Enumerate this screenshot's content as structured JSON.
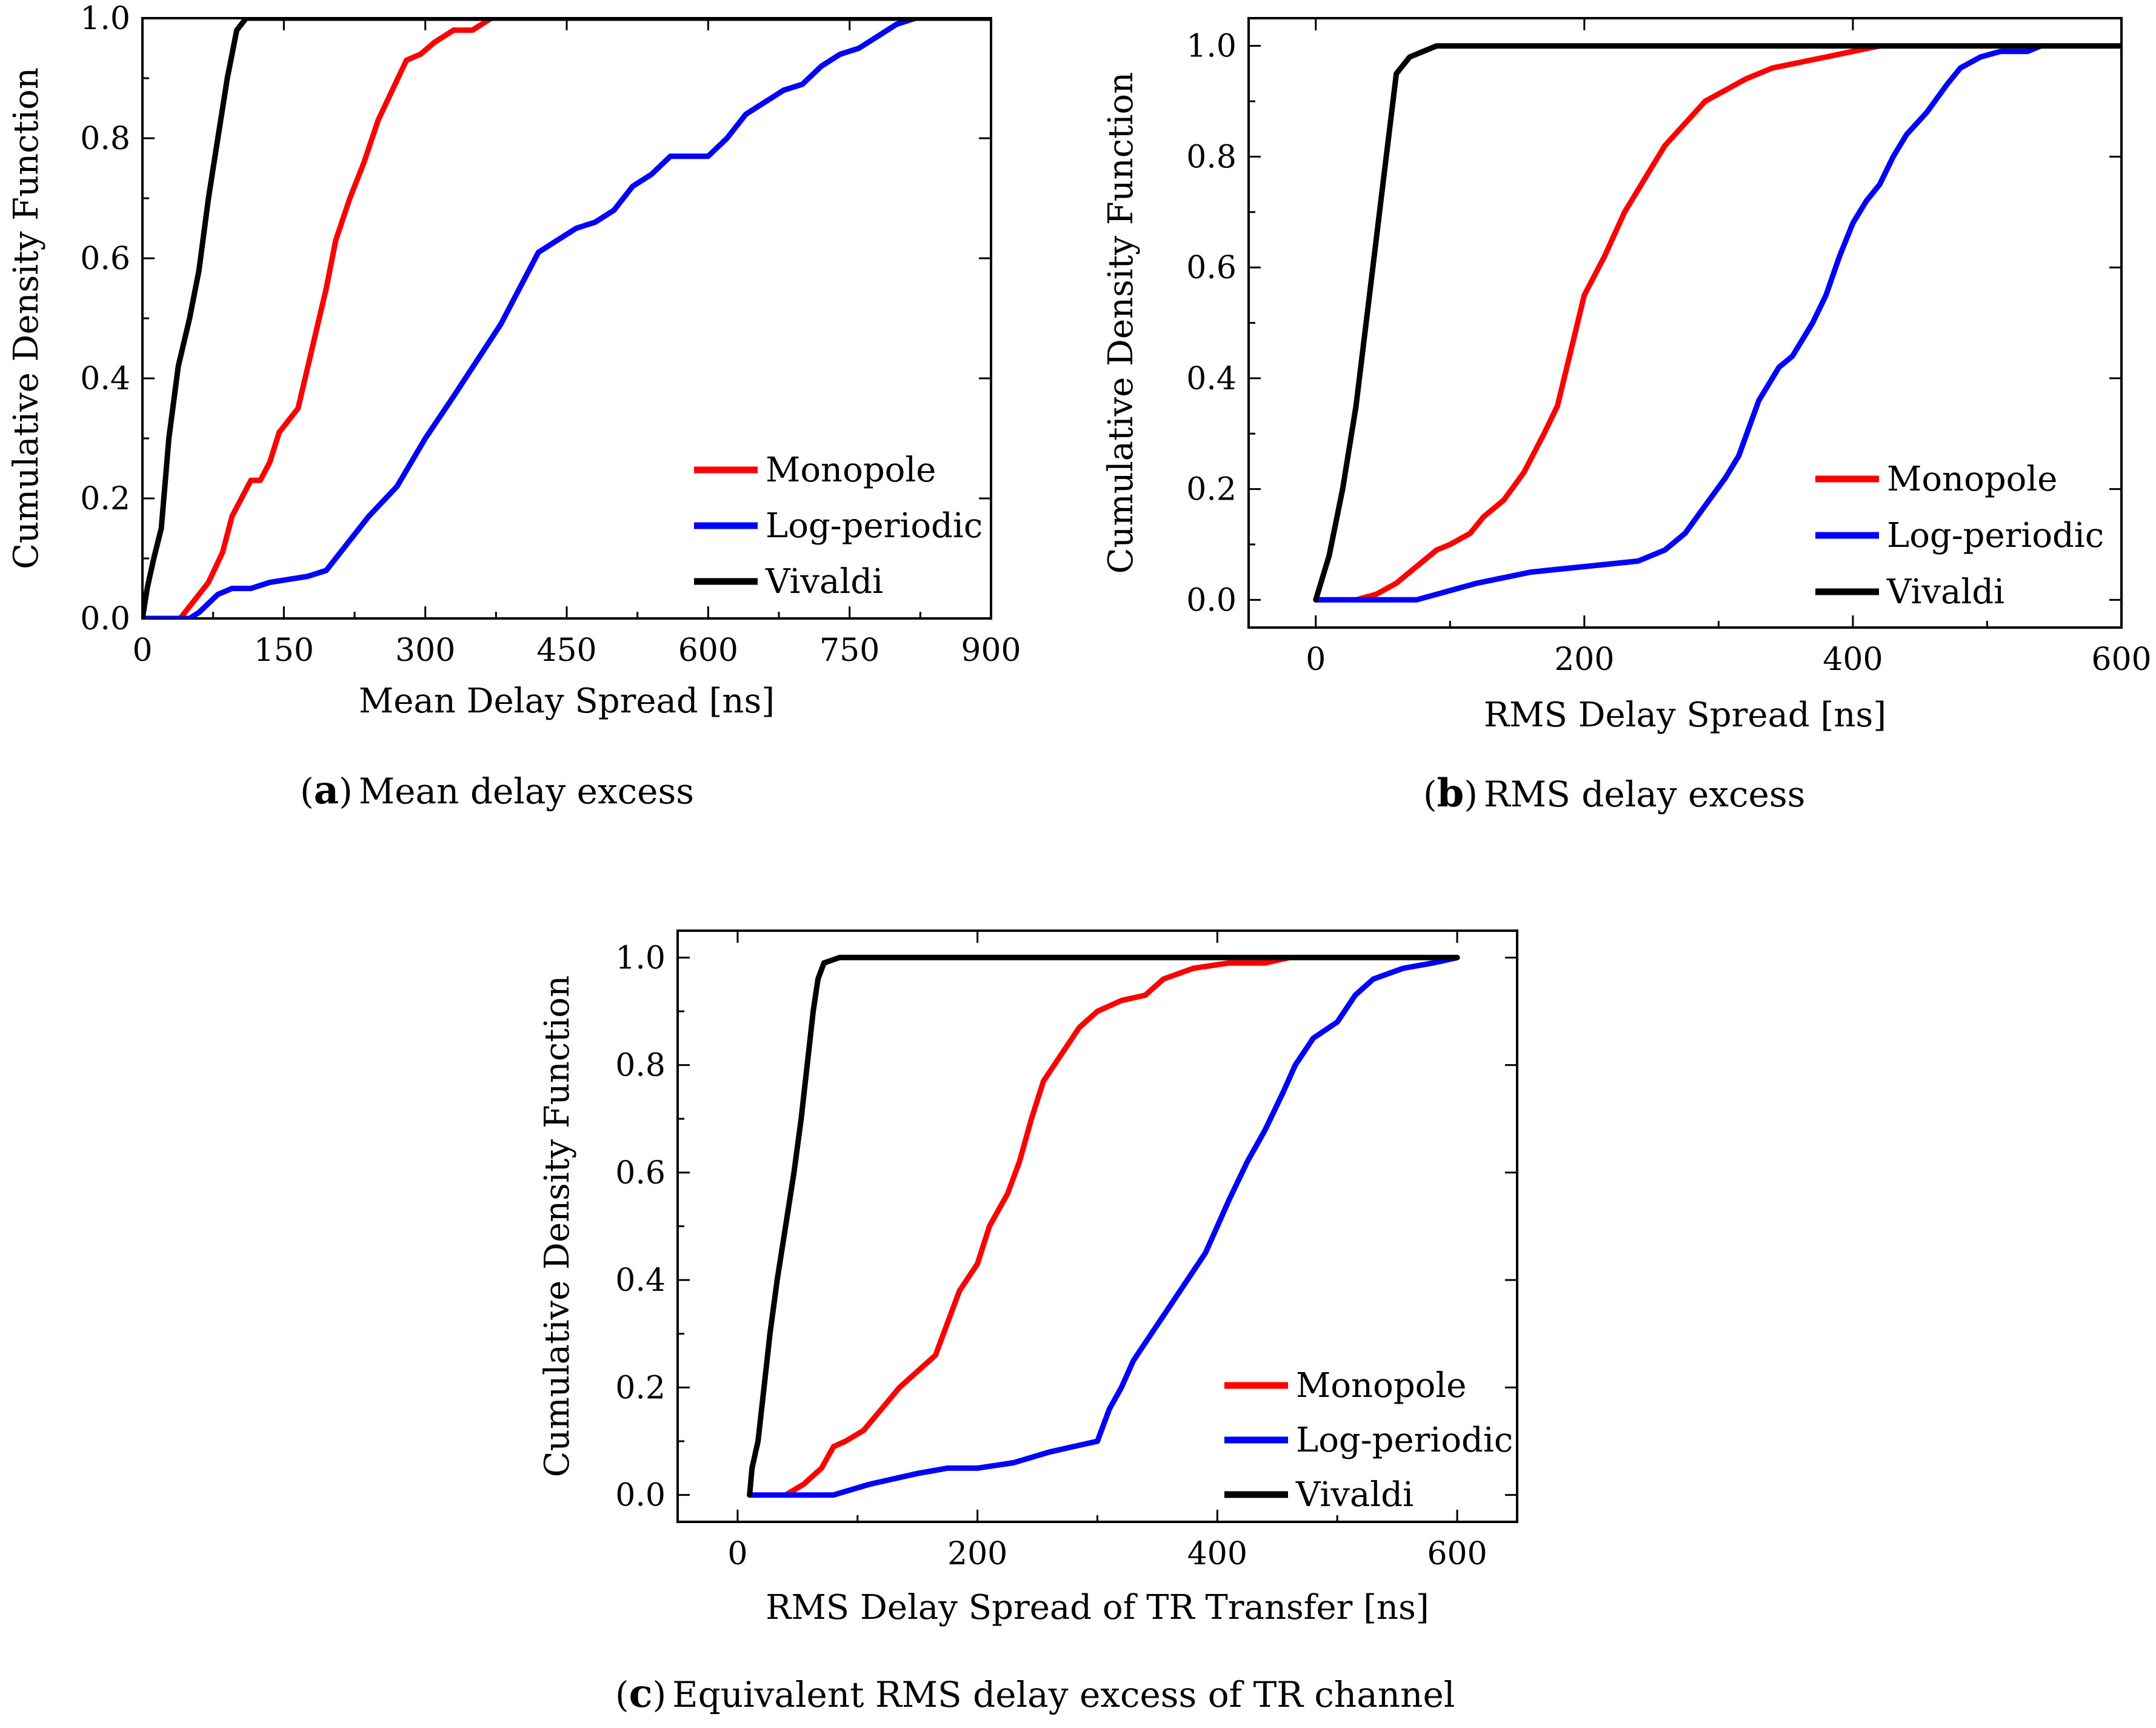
{
  "chart_data": [
    {
      "type": "line",
      "id": "a",
      "caption_letter": "a",
      "caption_prefix": "(",
      "caption_suffix": ")",
      "caption": "Mean delay excess",
      "xlabel": "Mean Delay Spread [ns]",
      "ylabel": "Cumulative Density Function",
      "xlim": [
        0,
        900
      ],
      "ylim": [
        0,
        1.0
      ],
      "xticks": [
        "0",
        "150",
        "300",
        "450",
        "600",
        "750",
        "900"
      ],
      "yticks": [
        "0.0",
        "0.2",
        "0.4",
        "0.6",
        "0.8",
        "1.0"
      ],
      "legend_position": "bottom-right",
      "series": [
        {
          "name": "Monopole",
          "color": "#ff0000",
          "points": [
            [
              0,
              0
            ],
            [
              40,
              0
            ],
            [
              55,
              0.03
            ],
            [
              70,
              0.06
            ],
            [
              85,
              0.11
            ],
            [
              95,
              0.17
            ],
            [
              115,
              0.23
            ],
            [
              125,
              0.23
            ],
            [
              135,
              0.26
            ],
            [
              145,
              0.31
            ],
            [
              165,
              0.35
            ],
            [
              180,
              0.45
            ],
            [
              195,
              0.55
            ],
            [
              205,
              0.63
            ],
            [
              220,
              0.7
            ],
            [
              235,
              0.76
            ],
            [
              250,
              0.83
            ],
            [
              265,
              0.88
            ],
            [
              280,
              0.93
            ],
            [
              295,
              0.94
            ],
            [
              310,
              0.96
            ],
            [
              330,
              0.98
            ],
            [
              350,
              0.98
            ],
            [
              370,
              1.0
            ],
            [
              380,
              1.0
            ]
          ]
        },
        {
          "name": "Log-periodic",
          "color": "#0000ff",
          "points": [
            [
              0,
              0
            ],
            [
              50,
              0
            ],
            [
              60,
              0.01
            ],
            [
              80,
              0.04
            ],
            [
              95,
              0.05
            ],
            [
              115,
              0.05
            ],
            [
              135,
              0.06
            ],
            [
              155,
              0.065
            ],
            [
              175,
              0.07
            ],
            [
              195,
              0.08
            ],
            [
              215,
              0.12
            ],
            [
              240,
              0.17
            ],
            [
              270,
              0.22
            ],
            [
              300,
              0.3
            ],
            [
              330,
              0.37
            ],
            [
              355,
              0.43
            ],
            [
              380,
              0.49
            ],
            [
              400,
              0.55
            ],
            [
              420,
              0.61
            ],
            [
              440,
              0.63
            ],
            [
              460,
              0.65
            ],
            [
              480,
              0.66
            ],
            [
              500,
              0.68
            ],
            [
              520,
              0.72
            ],
            [
              540,
              0.74
            ],
            [
              560,
              0.77
            ],
            [
              580,
              0.77
            ],
            [
              600,
              0.77
            ],
            [
              620,
              0.8
            ],
            [
              640,
              0.84
            ],
            [
              660,
              0.86
            ],
            [
              680,
              0.88
            ],
            [
              700,
              0.89
            ],
            [
              720,
              0.92
            ],
            [
              740,
              0.94
            ],
            [
              760,
              0.95
            ],
            [
              780,
              0.97
            ],
            [
              800,
              0.99
            ],
            [
              820,
              1.0
            ],
            [
              830,
              1.0
            ]
          ]
        },
        {
          "name": "Vivaldi",
          "color": "#000000",
          "points": [
            [
              0,
              0
            ],
            [
              5,
              0.05
            ],
            [
              12,
              0.1
            ],
            [
              20,
              0.15
            ],
            [
              28,
              0.3
            ],
            [
              38,
              0.42
            ],
            [
              50,
              0.5
            ],
            [
              60,
              0.58
            ],
            [
              70,
              0.7
            ],
            [
              80,
              0.8
            ],
            [
              90,
              0.9
            ],
            [
              100,
              0.98
            ],
            [
              110,
              1.0
            ],
            [
              900,
              1.0
            ]
          ]
        }
      ]
    },
    {
      "type": "line",
      "id": "b",
      "caption_letter": "b",
      "caption_prefix": "(",
      "caption_suffix": ")",
      "caption": "RMS delay excess",
      "xlabel": "RMS Delay Spread [ns]",
      "ylabel": "Cumulative Density Function",
      "xlim": [
        -50,
        600
      ],
      "ylim": [
        -0.05,
        1.05
      ],
      "xticks": [
        "0",
        "200",
        "400",
        "600"
      ],
      "yticks": [
        "0.0",
        "0.2",
        "0.4",
        "0.6",
        "0.8",
        "1.0"
      ],
      "legend_position": "bottom-right",
      "series": [
        {
          "name": "Monopole",
          "color": "#ff0000",
          "points": [
            [
              30,
              0
            ],
            [
              45,
              0.01
            ],
            [
              60,
              0.03
            ],
            [
              75,
              0.06
            ],
            [
              90,
              0.09
            ],
            [
              100,
              0.1
            ],
            [
              115,
              0.12
            ],
            [
              125,
              0.15
            ],
            [
              140,
              0.18
            ],
            [
              155,
              0.23
            ],
            [
              170,
              0.3
            ],
            [
              180,
              0.35
            ],
            [
              190,
              0.45
            ],
            [
              200,
              0.55
            ],
            [
              215,
              0.62
            ],
            [
              230,
              0.7
            ],
            [
              245,
              0.76
            ],
            [
              260,
              0.82
            ],
            [
              275,
              0.86
            ],
            [
              290,
              0.9
            ],
            [
              305,
              0.92
            ],
            [
              320,
              0.94
            ],
            [
              340,
              0.96
            ],
            [
              360,
              0.97
            ],
            [
              380,
              0.98
            ],
            [
              400,
              0.99
            ],
            [
              420,
              1.0
            ]
          ]
        },
        {
          "name": "Log-periodic",
          "color": "#0000ff",
          "points": [
            [
              0,
              0
            ],
            [
              50,
              0
            ],
            [
              75,
              0
            ],
            [
              90,
              0.01
            ],
            [
              105,
              0.02
            ],
            [
              120,
              0.03
            ],
            [
              140,
              0.04
            ],
            [
              160,
              0.05
            ],
            [
              200,
              0.06
            ],
            [
              240,
              0.07
            ],
            [
              260,
              0.09
            ],
            [
              275,
              0.12
            ],
            [
              290,
              0.17
            ],
            [
              305,
              0.22
            ],
            [
              315,
              0.26
            ],
            [
              330,
              0.36
            ],
            [
              345,
              0.42
            ],
            [
              355,
              0.44
            ],
            [
              370,
              0.5
            ],
            [
              380,
              0.55
            ],
            [
              390,
              0.62
            ],
            [
              400,
              0.68
            ],
            [
              410,
              0.72
            ],
            [
              420,
              0.75
            ],
            [
              430,
              0.8
            ],
            [
              440,
              0.84
            ],
            [
              455,
              0.88
            ],
            [
              470,
              0.93
            ],
            [
              480,
              0.96
            ],
            [
              495,
              0.98
            ],
            [
              510,
              0.99
            ],
            [
              530,
              0.99
            ],
            [
              540,
              1.0
            ]
          ]
        },
        {
          "name": "Vivaldi",
          "color": "#000000",
          "points": [
            [
              0,
              0
            ],
            [
              10,
              0.08
            ],
            [
              20,
              0.2
            ],
            [
              30,
              0.35
            ],
            [
              40,
              0.55
            ],
            [
              50,
              0.75
            ],
            [
              60,
              0.95
            ],
            [
              70,
              0.98
            ],
            [
              80,
              0.99
            ],
            [
              90,
              1.0
            ],
            [
              600,
              1.0
            ]
          ]
        }
      ]
    },
    {
      "type": "line",
      "id": "c",
      "caption_letter": "c",
      "caption_prefix": "(",
      "caption_suffix": ")",
      "caption": "Equivalent RMS delay excess of TR channel",
      "xlabel": "RMS Delay Spread of TR Transfer [ns]",
      "ylabel": "Cumulative Density Function",
      "xlim": [
        -50,
        650
      ],
      "ylim": [
        -0.05,
        1.05
      ],
      "xticks": [
        "0",
        "200",
        "400",
        "600"
      ],
      "yticks": [
        "0.0",
        "0.2",
        "0.4",
        "0.6",
        "0.8",
        "1.0"
      ],
      "legend_position": "bottom-right",
      "series": [
        {
          "name": "Monopole",
          "color": "#ff0000",
          "points": [
            [
              40,
              0
            ],
            [
              55,
              0.02
            ],
            [
              70,
              0.05
            ],
            [
              80,
              0.09
            ],
            [
              90,
              0.1
            ],
            [
              105,
              0.12
            ],
            [
              120,
              0.16
            ],
            [
              135,
              0.2
            ],
            [
              150,
              0.23
            ],
            [
              165,
              0.26
            ],
            [
              175,
              0.32
            ],
            [
              185,
              0.38
            ],
            [
              200,
              0.43
            ],
            [
              210,
              0.5
            ],
            [
              225,
              0.56
            ],
            [
              235,
              0.62
            ],
            [
              245,
              0.7
            ],
            [
              255,
              0.77
            ],
            [
              270,
              0.82
            ],
            [
              285,
              0.87
            ],
            [
              300,
              0.9
            ],
            [
              320,
              0.92
            ],
            [
              340,
              0.93
            ],
            [
              355,
              0.96
            ],
            [
              380,
              0.98
            ],
            [
              410,
              0.99
            ],
            [
              440,
              0.99
            ],
            [
              460,
              1.0
            ]
          ]
        },
        {
          "name": "Log-periodic",
          "color": "#0000ff",
          "points": [
            [
              10,
              0
            ],
            [
              80,
              0
            ],
            [
              95,
              0.01
            ],
            [
              110,
              0.02
            ],
            [
              130,
              0.03
            ],
            [
              150,
              0.04
            ],
            [
              175,
              0.05
            ],
            [
              200,
              0.05
            ],
            [
              230,
              0.06
            ],
            [
              260,
              0.08
            ],
            [
              280,
              0.09
            ],
            [
              300,
              0.1
            ],
            [
              310,
              0.16
            ],
            [
              320,
              0.2
            ],
            [
              330,
              0.25
            ],
            [
              345,
              0.3
            ],
            [
              360,
              0.35
            ],
            [
              375,
              0.4
            ],
            [
              390,
              0.45
            ],
            [
              400,
              0.5
            ],
            [
              410,
              0.55
            ],
            [
              425,
              0.62
            ],
            [
              440,
              0.68
            ],
            [
              455,
              0.75
            ],
            [
              465,
              0.8
            ],
            [
              480,
              0.85
            ],
            [
              500,
              0.88
            ],
            [
              515,
              0.93
            ],
            [
              530,
              0.96
            ],
            [
              555,
              0.98
            ],
            [
              580,
              0.99
            ],
            [
              600,
              1.0
            ]
          ]
        },
        {
          "name": "Vivaldi",
          "color": "#000000",
          "points": [
            [
              10,
              0
            ],
            [
              12,
              0.05
            ],
            [
              17,
              0.1
            ],
            [
              22,
              0.2
            ],
            [
              27,
              0.3
            ],
            [
              33,
              0.4
            ],
            [
              40,
              0.5
            ],
            [
              47,
              0.6
            ],
            [
              53,
              0.7
            ],
            [
              58,
              0.8
            ],
            [
              63,
              0.9
            ],
            [
              67,
              0.96
            ],
            [
              72,
              0.99
            ],
            [
              85,
              1.0
            ],
            [
              600,
              1.0
            ]
          ]
        }
      ]
    }
  ]
}
